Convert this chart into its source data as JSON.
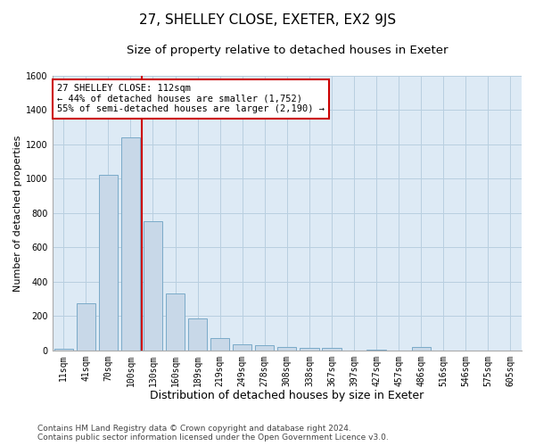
{
  "title": "27, SHELLEY CLOSE, EXETER, EX2 9JS",
  "subtitle": "Size of property relative to detached houses in Exeter",
  "xlabel": "Distribution of detached houses by size in Exeter",
  "ylabel": "Number of detached properties",
  "categories": [
    "11sqm",
    "41sqm",
    "70sqm",
    "100sqm",
    "130sqm",
    "160sqm",
    "189sqm",
    "219sqm",
    "249sqm",
    "278sqm",
    "308sqm",
    "338sqm",
    "367sqm",
    "397sqm",
    "427sqm",
    "457sqm",
    "486sqm",
    "516sqm",
    "546sqm",
    "575sqm",
    "605sqm"
  ],
  "values": [
    10,
    275,
    1025,
    1240,
    750,
    330,
    185,
    70,
    37,
    28,
    18,
    12,
    12,
    0,
    5,
    0,
    18,
    0,
    0,
    0,
    0
  ],
  "bar_color": "#c8d8e8",
  "bar_edge_color": "#7aaac8",
  "grid_color": "#b8cfe0",
  "ax_background_color": "#ddeaf5",
  "background_color": "#ffffff",
  "annotation_box_text": "27 SHELLEY CLOSE: 112sqm\n← 44% of detached houses are smaller (1,752)\n55% of semi-detached houses are larger (2,190) →",
  "annotation_box_color": "#ffffff",
  "annotation_box_edge_color": "#cc0000",
  "vline_color": "#cc0000",
  "ylim": [
    0,
    1600
  ],
  "yticks": [
    0,
    200,
    400,
    600,
    800,
    1000,
    1200,
    1400,
    1600
  ],
  "footer_line1": "Contains HM Land Registry data © Crown copyright and database right 2024.",
  "footer_line2": "Contains public sector information licensed under the Open Government Licence v3.0.",
  "title_fontsize": 11,
  "subtitle_fontsize": 9.5,
  "xlabel_fontsize": 9,
  "ylabel_fontsize": 8,
  "tick_fontsize": 7,
  "annotation_fontsize": 7.5,
  "footer_fontsize": 6.5
}
